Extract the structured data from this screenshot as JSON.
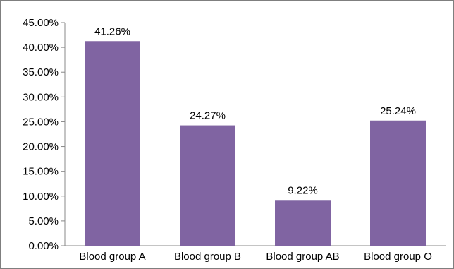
{
  "chart_data": {
    "type": "bar",
    "categories": [
      "Blood group A",
      "Blood group B",
      "Blood group AB",
      "Blood group O"
    ],
    "values": [
      41.26,
      24.27,
      9.22,
      25.24
    ],
    "data_labels": [
      "41.26%",
      "24.27%",
      "9.22%",
      "25.24%"
    ],
    "ylim": [
      0,
      45
    ],
    "yticks": [
      0,
      5,
      10,
      15,
      20,
      25,
      30,
      35,
      40,
      45
    ],
    "ytick_labels": [
      "0.00%",
      "5.00%",
      "10.00%",
      "15.00%",
      "20.00%",
      "25.00%",
      "30.00%",
      "35.00%",
      "40.00%",
      "45.00%"
    ],
    "title": "",
    "xlabel": "",
    "ylabel": "",
    "grid": false,
    "legend": "none",
    "bar_color": "#8064a2"
  }
}
